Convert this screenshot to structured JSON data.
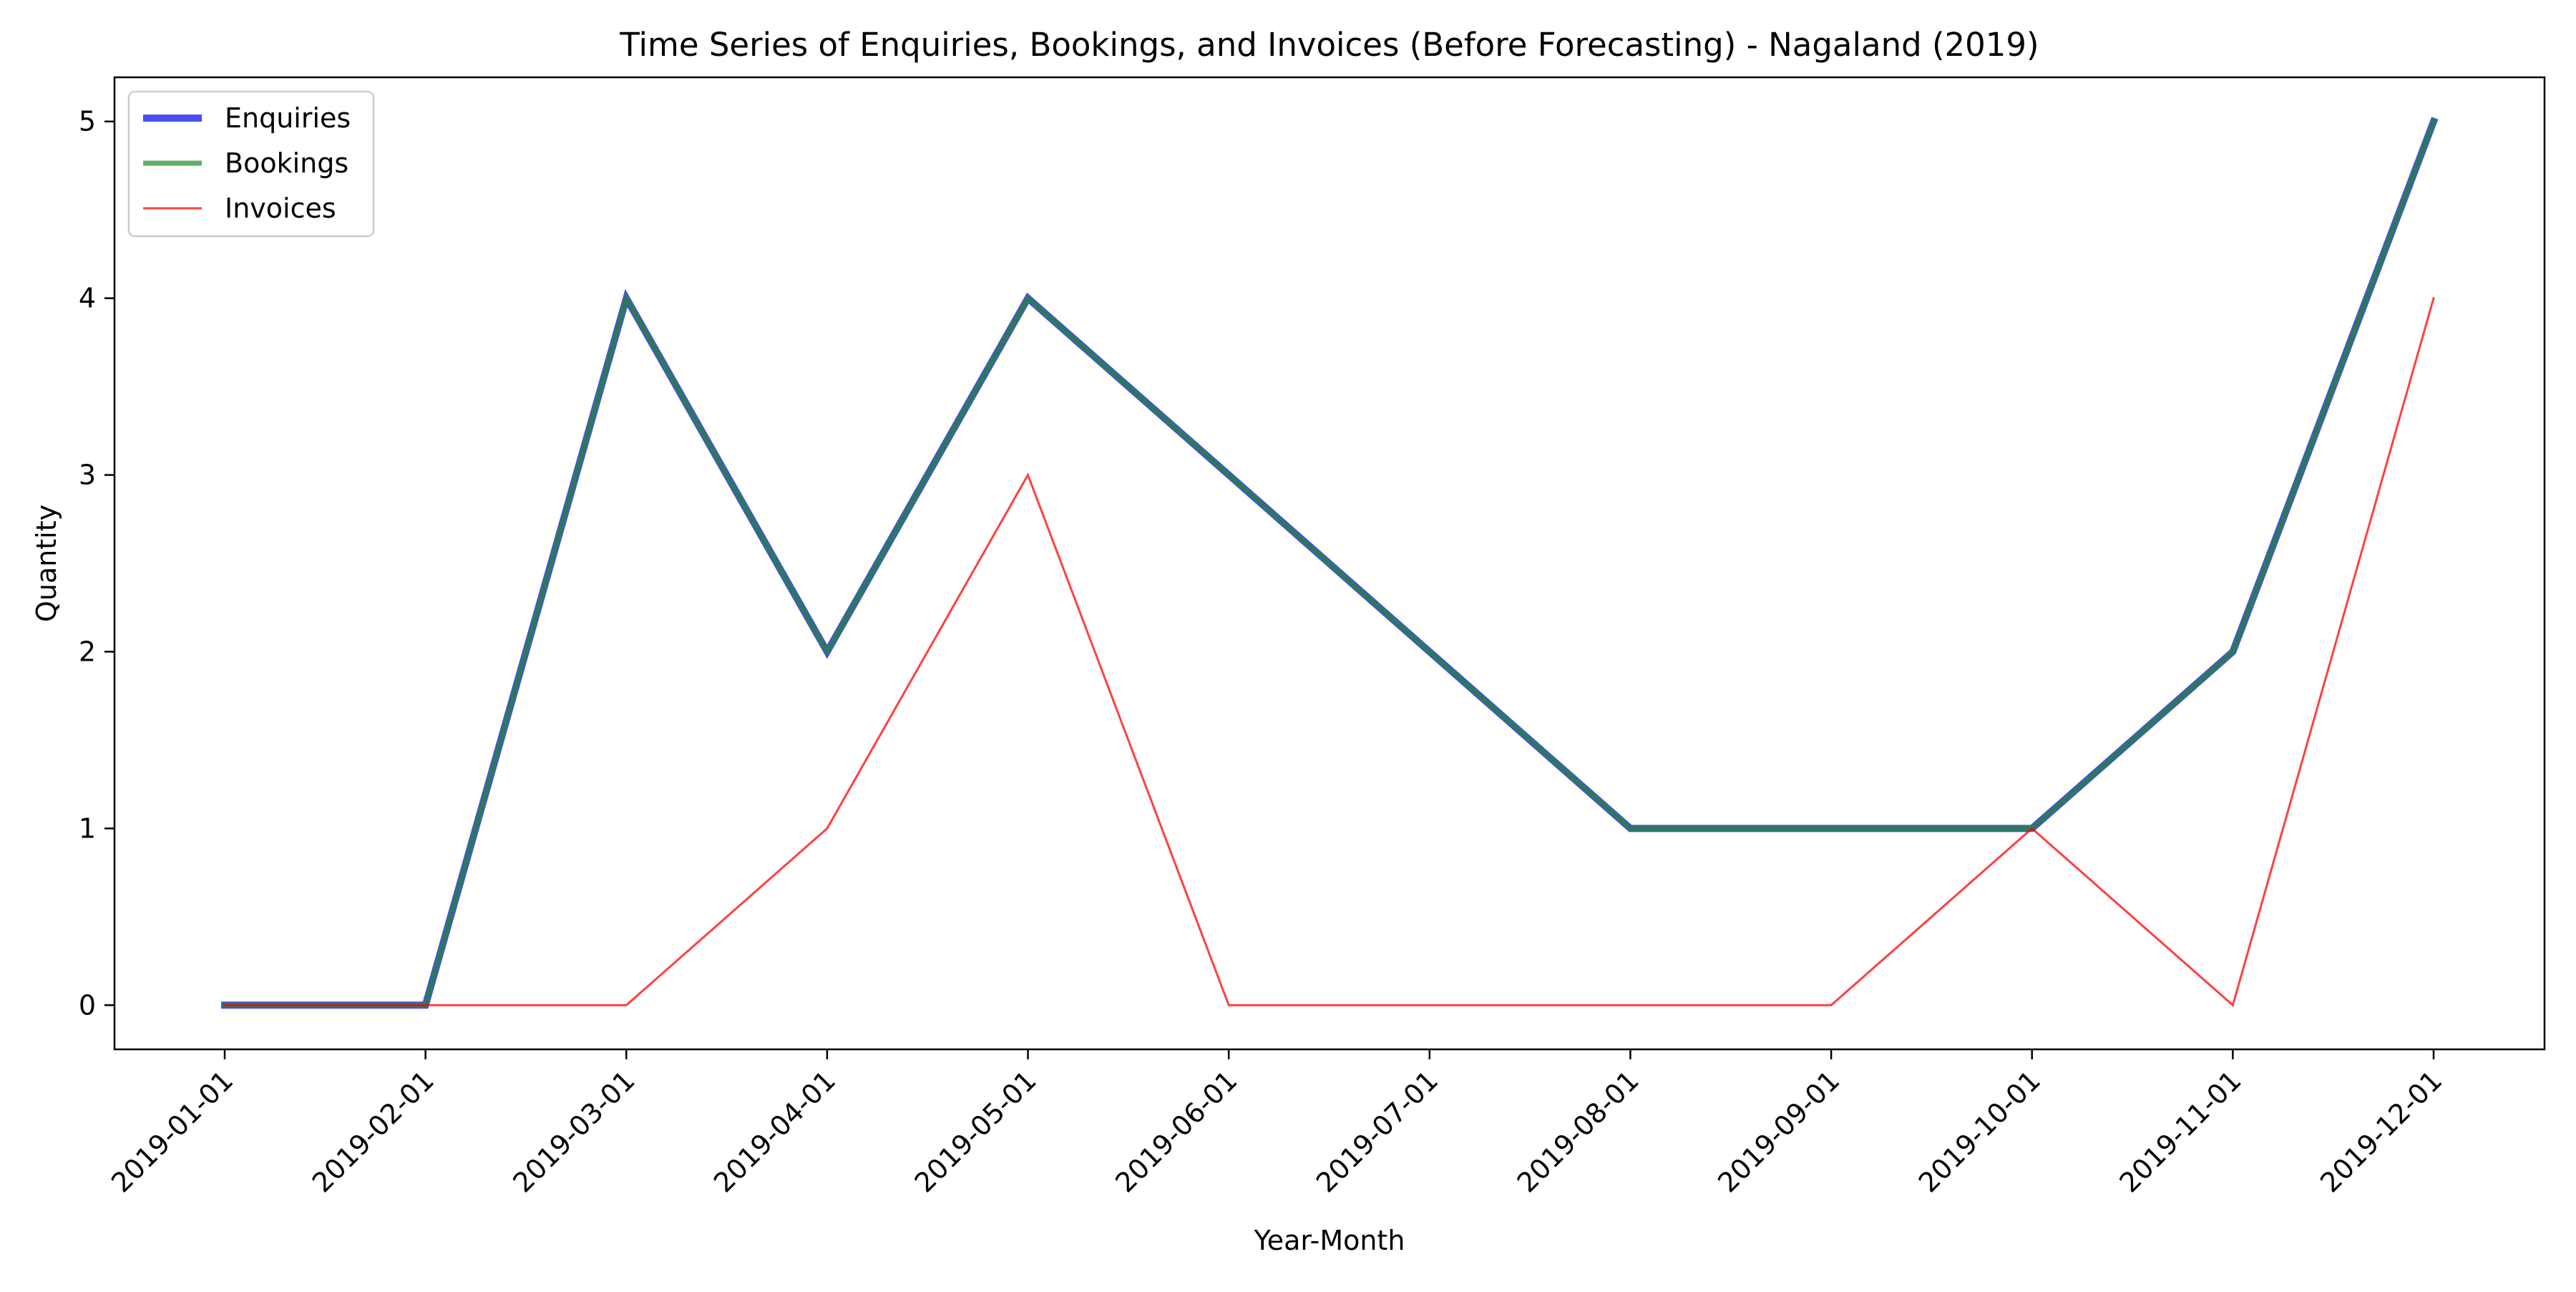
{
  "chart_data": {
    "type": "line",
    "title": "Time Series of Enquiries, Bookings, and Invoices (Before Forecasting) - Nagaland (2019)",
    "xlabel": "Year-Month",
    "ylabel": "Quantity",
    "categories": [
      "2019-01-01",
      "2019-02-01",
      "2019-03-01",
      "2019-04-01",
      "2019-05-01",
      "2019-06-01",
      "2019-07-01",
      "2019-08-01",
      "2019-09-01",
      "2019-10-01",
      "2019-11-01",
      "2019-12-01"
    ],
    "yticks": [
      0,
      1,
      2,
      3,
      4,
      5
    ],
    "ylim": [
      -0.25,
      5.25
    ],
    "grid": false,
    "legend_position": "top-left",
    "series": [
      {
        "name": "Enquiries",
        "color": "#0000ee",
        "values": [
          0,
          0,
          4,
          2,
          4,
          3,
          2,
          1,
          1,
          1,
          2,
          5
        ]
      },
      {
        "name": "Bookings",
        "color": "#1e8c1e",
        "values": [
          0,
          0,
          4,
          2,
          4,
          3,
          2,
          1,
          1,
          1,
          2,
          5
        ]
      },
      {
        "name": "Invoices",
        "color": "#ff0000",
        "values": [
          0,
          0,
          0,
          1,
          3,
          0,
          0,
          0,
          0,
          1,
          0,
          4
        ]
      }
    ]
  }
}
